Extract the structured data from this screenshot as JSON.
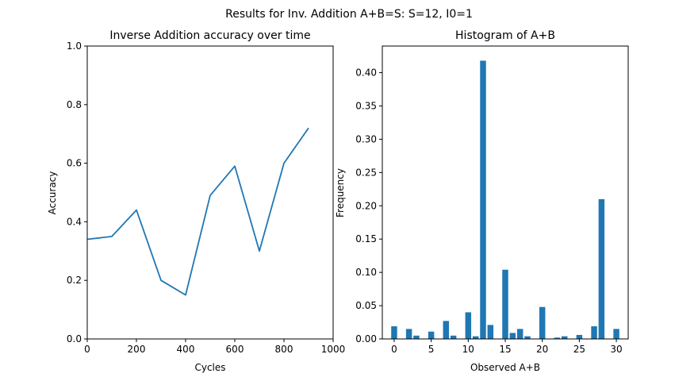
{
  "figure": {
    "suptitle": "Results for Inv. Addition A+B=S: S=12, I0=1"
  },
  "chart_data": [
    {
      "type": "line",
      "title": "Inverse Addition accuracy over time",
      "xlabel": "Cycles",
      "ylabel": "Accuracy",
      "xlim": [
        0,
        1000
      ],
      "ylim": [
        0,
        1.0
      ],
      "xticks": [
        0,
        200,
        400,
        600,
        800,
        1000
      ],
      "xtick_labels": [
        "0",
        "200",
        "400",
        "600",
        "800",
        "1000"
      ],
      "yticks": [
        0,
        0.2,
        0.4,
        0.6,
        0.8,
        1.0
      ],
      "ytick_labels": [
        "0.0",
        "0.2",
        "0.4",
        "0.6",
        "0.8",
        "1.0"
      ],
      "grid": false,
      "color": "#1f77b4",
      "series": [
        {
          "x": [
            0,
            100,
            200,
            300,
            400,
            500,
            600,
            700,
            800,
            900
          ],
          "y": [
            0.34,
            0.35,
            0.44,
            0.2,
            0.15,
            0.49,
            0.59,
            0.3,
            0.6,
            0.72
          ]
        }
      ]
    },
    {
      "type": "bar",
      "title": "Histogram of A+B",
      "xlabel": "Observed A+B",
      "ylabel": "Frequency",
      "xlim": [
        -1.6,
        31.6
      ],
      "ylim": [
        0,
        0.44
      ],
      "xticks": [
        0,
        5,
        10,
        15,
        20,
        25,
        30
      ],
      "xtick_labels": [
        "0",
        "5",
        "10",
        "15",
        "20",
        "25",
        "30"
      ],
      "yticks": [
        0,
        0.05,
        0.1,
        0.15,
        0.2,
        0.25,
        0.3,
        0.35,
        0.4
      ],
      "ytick_labels": [
        "0.00",
        "0.05",
        "0.10",
        "0.15",
        "0.20",
        "0.25",
        "0.30",
        "0.35",
        "0.40"
      ],
      "grid": false,
      "color": "#1f77b4",
      "categories": [
        0,
        2,
        3,
        5,
        7,
        8,
        10,
        11,
        12,
        13,
        15,
        16,
        17,
        18,
        20,
        22,
        23,
        25,
        27,
        28,
        30
      ],
      "values": [
        0.019,
        0.015,
        0.005,
        0.011,
        0.027,
        0.005,
        0.04,
        0.004,
        0.418,
        0.021,
        0.104,
        0.009,
        0.015,
        0.004,
        0.048,
        0.002,
        0.004,
        0.006,
        0.019,
        0.21,
        0.015
      ]
    }
  ]
}
